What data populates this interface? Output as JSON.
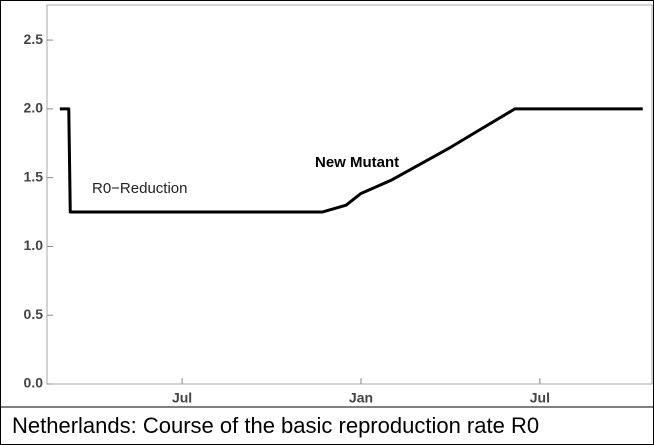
{
  "chart_data": {
    "type": "line",
    "caption": "Netherlands: Course of the basic reproduction rate R0",
    "annotations": [
      "R0−Reduction",
      "New Mutant"
    ],
    "x": [
      2.9,
      3.2,
      3.25,
      11.7,
      12.5,
      13,
      14,
      15,
      16,
      17,
      18.16,
      22.45
    ],
    "values": [
      2.0,
      2.0,
      1.25,
      1.25,
      1.3,
      1.385,
      1.48,
      1.6,
      1.72,
      1.85,
      2.0,
      2.0
    ],
    "color": "#000000",
    "xlim": [
      2.47,
      22.76
    ],
    "xticks": [
      {
        "value": 7,
        "label": "Jul"
      },
      {
        "value": 13,
        "label": "Jan"
      },
      {
        "value": 19,
        "label": "Jul"
      }
    ],
    "ylim": [
      0,
      2.755
    ],
    "yticks": [
      {
        "value": 0,
        "label": "0.0"
      },
      0.5,
      {
        "value": 1,
        "label": "1.0"
      },
      1.5,
      {
        "value": 2,
        "label": "2.0"
      },
      2.5
    ],
    "grid": false
  }
}
